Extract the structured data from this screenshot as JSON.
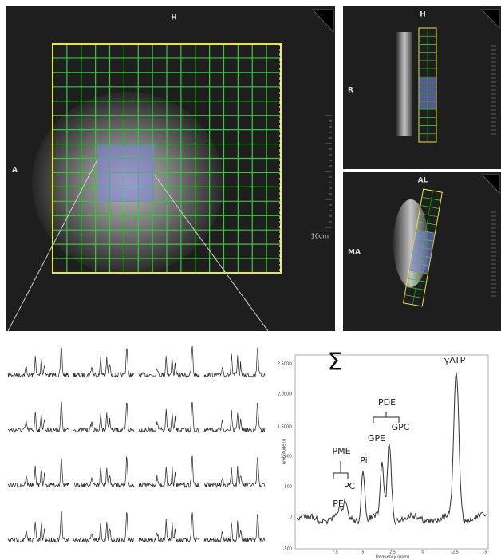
{
  "main_view": {
    "label_top": "H",
    "label_left": "A",
    "scale": "10cm"
  },
  "upper_view": {
    "label_top": "H",
    "label_left": "R"
  },
  "lower_view": {
    "label_top": "AL",
    "label_left": "MA"
  },
  "spectrum": {
    "sigma": "Σ",
    "y_axis_label": "Amplitude (i)",
    "x_axis_label": "Frequency (ppm)",
    "yticks": [
      "2,500D",
      "2,000D",
      "1,500D",
      "1,000",
      "500",
      "0",
      "-500"
    ],
    "xticks": [
      "7.5",
      "5",
      "2.5",
      "0",
      "-2.5",
      "-5"
    ],
    "peaks": {
      "atp": "γATP",
      "pde": "PDE",
      "gpe": "GPE",
      "gpc": "GPC",
      "pme": "PME",
      "pi": "Pi",
      "pc": "PC",
      "pe": "PE"
    }
  }
}
